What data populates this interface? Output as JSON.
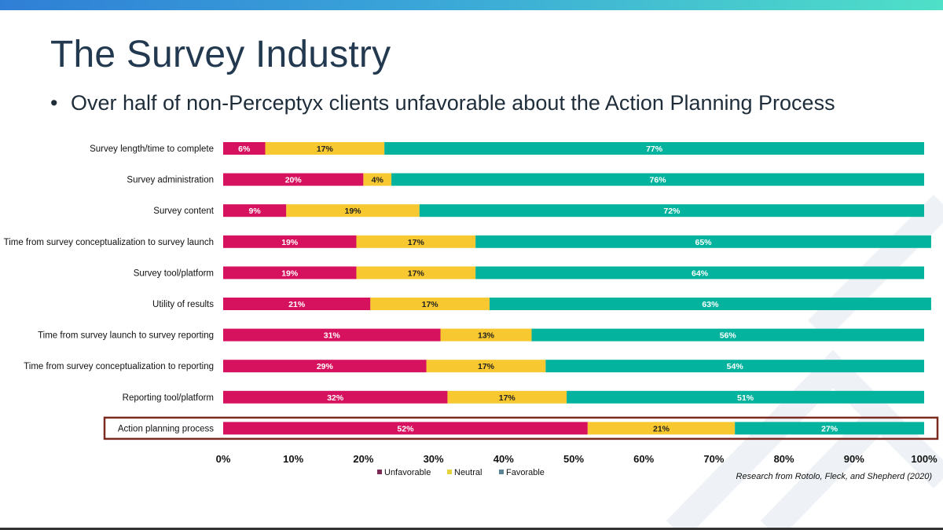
{
  "slide": {
    "title": "The Survey Industry",
    "bullet": "Over half of non-Perceptyx clients unfavorable about the Action Planning Process",
    "source": "Research from Rotolo, Fleck, and Shepherd (2020)"
  },
  "colors": {
    "unfavorable": "#d6125f",
    "neutral": "#f7c82f",
    "favorable": "#03b39e",
    "highlight_border": "#7a2a1e",
    "legend_unfavorable": "#7b2b53",
    "legend_neutral": "#e6d23a",
    "legend_favorable": "#5a8597"
  },
  "chart_data": {
    "type": "bar",
    "orientation": "horizontal",
    "stacked": true,
    "categories": [
      "Survey length/time to complete",
      "Survey administration",
      "Survey content",
      "Time from survey conceptualization to survey launch",
      "Survey tool/platform",
      "Utility of results",
      "Time from survey launch to survey reporting",
      "Time from survey conceptualization to reporting",
      "Reporting tool/platform",
      "Action planning process"
    ],
    "series": [
      {
        "name": "Unfavorable",
        "values": [
          6,
          20,
          9,
          19,
          19,
          21,
          31,
          29,
          32,
          52
        ],
        "labels": [
          "6%",
          "20%",
          "9%",
          "19%",
          "19%",
          "21%",
          "31%",
          "29%",
          "32%",
          "52%"
        ]
      },
      {
        "name": "Neutral",
        "values": [
          17,
          4,
          19,
          17,
          17,
          17,
          13,
          17,
          17,
          21
        ],
        "labels": [
          "17%",
          "4%",
          "19%",
          "17%",
          "17%",
          "17%",
          "13%",
          "17%",
          "17%",
          "21%"
        ]
      },
      {
        "name": "Favorable",
        "values": [
          77,
          76,
          72,
          65,
          64,
          63,
          56,
          54,
          51,
          27
        ],
        "labels": [
          "77%",
          "76%",
          "72%",
          "65%",
          "64%",
          "63%",
          "56%",
          "54%",
          "51%",
          "27%"
        ]
      }
    ],
    "x_ticks": [
      "0%",
      "10%",
      "20%",
      "30%",
      "40%",
      "50%",
      "60%",
      "70%",
      "80%",
      "90%",
      "100%"
    ],
    "xlim": [
      0,
      100
    ],
    "highlighted_category": "Action planning process",
    "legend_position": "bottom",
    "grid": false
  }
}
